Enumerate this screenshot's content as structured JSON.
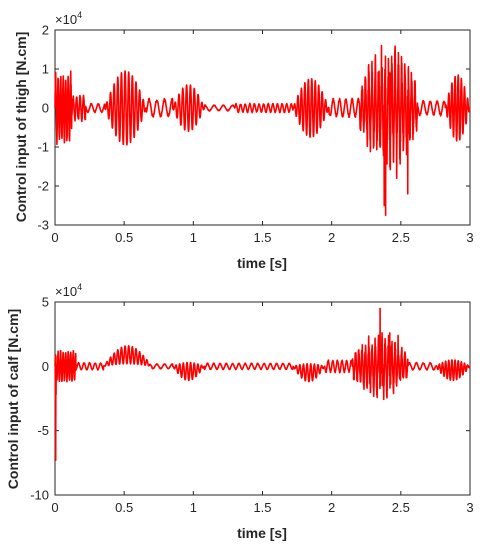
{
  "chart_data": [
    {
      "type": "line",
      "xlabel": "time [s]",
      "ylabel": "Control input of thigh [N.cm]",
      "y_multiplier": "×10",
      "y_multiplier_exp": "4",
      "xlim": [
        0,
        3
      ],
      "ylim": [
        -3,
        2
      ],
      "x_ticks": [
        0,
        0.5,
        1,
        1.5,
        2,
        2.5,
        3
      ],
      "x_tick_labels": [
        "0",
        "0.5",
        "1",
        "1.5",
        "2",
        "2.5",
        "3"
      ],
      "y_ticks": [
        -3,
        -2,
        -1,
        0,
        1,
        2
      ],
      "y_tick_labels": [
        "-3",
        "-2",
        "-1",
        "0",
        "1",
        "2"
      ],
      "grid": false,
      "line_color": "#ff0000",
      "envelope": {
        "note_units": "x in s, y in units of 10^4 N.cm",
        "segments": [
          {
            "x0": 0.0,
            "x1": 0.12,
            "amp": 0.95,
            "freq": 55
          },
          {
            "x0": 0.12,
            "x1": 0.22,
            "amp": 0.35,
            "freq": 40
          },
          {
            "x0": 0.22,
            "x1": 0.36,
            "amp": 0.12,
            "freq": 20
          },
          {
            "x0": 0.36,
            "x1": 0.66,
            "amp": 0.95,
            "freq": 38,
            "shape": "bell"
          },
          {
            "x0": 0.66,
            "x1": 0.85,
            "amp": 0.25,
            "freq": 18
          },
          {
            "x0": 0.85,
            "x1": 1.08,
            "amp": 0.6,
            "freq": 36,
            "shape": "bell"
          },
          {
            "x0": 1.08,
            "x1": 1.3,
            "amp": 0.08,
            "freq": 15
          },
          {
            "x0": 1.3,
            "x1": 1.72,
            "amp": 0.12,
            "freq": 30
          },
          {
            "x0": 1.72,
            "x1": 1.98,
            "amp": 0.75,
            "freq": 40,
            "shape": "bell"
          },
          {
            "x0": 1.98,
            "x1": 2.2,
            "amp": 0.25,
            "freq": 22
          },
          {
            "x0": 2.2,
            "x1": 2.62,
            "amp": 1.2,
            "freq": 42,
            "shape": "burst"
          },
          {
            "x0": 2.62,
            "x1": 2.82,
            "amp": 0.2,
            "freq": 20
          },
          {
            "x0": 2.82,
            "x1": 3.0,
            "amp": 0.85,
            "freq": 44,
            "shape": "bell"
          }
        ],
        "spikes": [
          {
            "x": 2.36,
            "y": 1.6
          },
          {
            "x": 2.38,
            "y": -2.5
          },
          {
            "x": 2.39,
            "y": -2.75
          },
          {
            "x": 2.42,
            "y": 0.9
          },
          {
            "x": 2.47,
            "y": -1.8
          },
          {
            "x": 2.55,
            "y": -2.2
          }
        ]
      }
    },
    {
      "type": "line",
      "xlabel": "time [s]",
      "ylabel": "Control input of calf [N.cm]",
      "y_multiplier": "×10",
      "y_multiplier_exp": "4",
      "xlim": [
        0,
        3
      ],
      "ylim": [
        -10,
        5
      ],
      "x_ticks": [
        0,
        0.5,
        1,
        1.5,
        2,
        2.5,
        3
      ],
      "x_tick_labels": [
        "0",
        "0.5",
        "1",
        "1.5",
        "2",
        "2.5",
        "3"
      ],
      "y_ticks": [
        -10,
        -5,
        0,
        5
      ],
      "y_tick_labels": [
        "-10",
        "-5",
        "0",
        "5"
      ],
      "grid": false,
      "line_color": "#ff0000",
      "envelope": {
        "note_units": "x in s, y in units of 10^4 N.cm",
        "segments": [
          {
            "x0": 0.0,
            "x1": 0.15,
            "amp": 1.3,
            "freq": 55
          },
          {
            "x0": 0.15,
            "x1": 0.35,
            "amp": 0.3,
            "freq": 25
          },
          {
            "x0": 0.35,
            "x1": 0.7,
            "amp": 0.7,
            "freq": 38,
            "shape": "bell",
            "offset": 0.9
          },
          {
            "x0": 0.7,
            "x1": 0.85,
            "amp": 0.2,
            "freq": 18
          },
          {
            "x0": 0.85,
            "x1": 1.08,
            "amp": 0.7,
            "freq": 38,
            "shape": "bell",
            "offset": -0.4
          },
          {
            "x0": 1.08,
            "x1": 1.72,
            "amp": 0.25,
            "freq": 22
          },
          {
            "x0": 1.72,
            "x1": 1.95,
            "amp": 0.7,
            "freq": 38,
            "shape": "bell",
            "offset": -0.5
          },
          {
            "x0": 1.95,
            "x1": 2.15,
            "amp": 0.5,
            "freq": 30
          },
          {
            "x0": 2.15,
            "x1": 2.55,
            "amp": 2.0,
            "freq": 42,
            "shape": "burst"
          },
          {
            "x0": 2.55,
            "x1": 2.75,
            "amp": 0.3,
            "freq": 20
          },
          {
            "x0": 2.75,
            "x1": 3.0,
            "amp": 0.8,
            "freq": 44,
            "shape": "bell",
            "offset": -0.3
          }
        ],
        "spikes": [
          {
            "x": 0.005,
            "y": -7.3
          },
          {
            "x": 2.35,
            "y": 4.5
          },
          {
            "x": 2.37,
            "y": -1.5
          },
          {
            "x": 2.42,
            "y": 2.6
          },
          {
            "x": 2.48,
            "y": 2.4
          }
        ]
      }
    }
  ]
}
